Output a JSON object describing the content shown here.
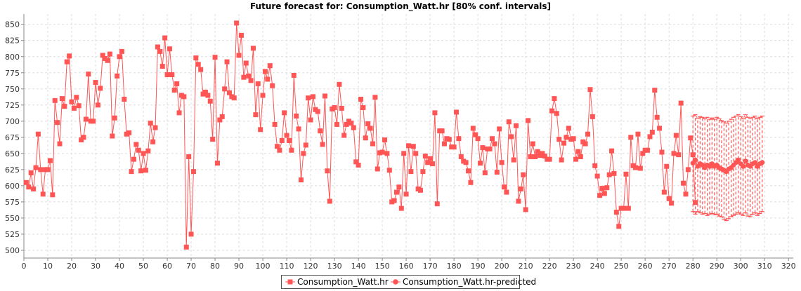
{
  "chart_data": {
    "type": "line",
    "title": "Future forecast for: Consumption_Watt.hr [80% conf. intervals]",
    "xlabel": "",
    "ylabel": "",
    "xlim": [
      0,
      322
    ],
    "ylim": [
      488,
      866
    ],
    "x_ticks": [
      0,
      10,
      20,
      30,
      40,
      50,
      60,
      70,
      80,
      90,
      100,
      110,
      120,
      130,
      140,
      150,
      160,
      170,
      180,
      190,
      200,
      210,
      220,
      230,
      240,
      250,
      260,
      270,
      280,
      290,
      300,
      310,
      320
    ],
    "y_ticks": [
      500,
      525,
      550,
      575,
      600,
      625,
      650,
      675,
      700,
      725,
      750,
      775,
      800,
      825,
      850
    ],
    "grid": true,
    "legend_position": "bottom",
    "series": [
      {
        "name": "Consumption_Watt.hr",
        "color": "#ff5555",
        "marker": "square",
        "x_start": 1,
        "values": [
          605,
          598,
          620,
          595,
          628,
          680,
          625,
          587,
          625,
          625,
          639,
          586,
          732,
          698,
          665,
          735,
          723,
          792,
          801,
          730,
          720,
          737,
          724,
          671,
          675,
          703,
          773,
          700,
          700,
          760,
          725,
          751,
          802,
          797,
          794,
          804,
          677,
          705,
          770,
          800,
          808,
          734,
          680,
          682,
          622,
          641,
          664,
          655,
          623,
          650,
          624,
          654,
          697,
          668,
          690,
          815,
          808,
          785,
          829,
          772,
          812,
          772,
          748,
          758,
          713,
          740,
          738,
          505,
          645,
          525,
          622,
          798,
          788,
          780,
          742,
          745,
          740,
          731,
          672,
          799,
          635,
          702,
          707,
          750,
          792,
          744,
          738,
          736,
          852,
          802,
          833,
          768,
          790,
          770,
          763,
          813,
          710,
          758,
          687,
          740,
          777,
          765,
          786,
          755,
          695,
          661,
          655,
          670,
          713,
          678,
          670,
          655,
          771,
          708,
          688,
          609,
          650,
          663,
          736,
          702,
          738,
          718,
          715,
          685,
          664,
          739,
          623,
          576,
          719,
          721,
          695,
          757,
          720,
          678,
          695,
          700,
          697,
          690,
          637,
          632,
          734,
          721,
          674,
          696,
          689,
          665,
          737,
          626,
          651,
          652,
          671,
          650,
          624,
          575,
          577,
          590,
          598,
          565,
          650,
          587,
          662,
          622,
          661,
          650,
          595,
          593,
          622,
          646,
          636,
          642,
          634,
          713,
          572,
          685,
          685,
          665,
          673,
          672,
          660,
          660,
          714,
          673,
          645,
          638,
          636,
          623,
          605,
          689,
          679,
          673,
          635,
          659,
          620,
          657,
          657,
          673,
          665,
          621,
          688,
          636,
          598,
          590,
          699,
          676,
          640,
          693,
          576,
          595,
          617,
          563,
          701,
          645,
          665,
          645,
          653,
          647,
          650,
          646,
          641,
          641,
          716,
          735,
          712,
          672,
          640,
          666,
          675,
          689,
          672,
          673,
          641,
          653,
          645,
          668,
          665,
          680,
          749,
          707,
          631,
          615,
          585,
          596,
          588,
          597,
          617,
          654,
          619,
          559,
          537,
          565,
          565,
          618,
          565,
          675,
          631,
          628,
          680,
          627,
          650,
          655,
          655,
          676,
          683,
          748,
          706,
          689,
          652,
          590,
          630,
          580,
          573,
          650,
          678,
          648,
          728,
          604,
          587,
          625,
          674,
          648,
          574
        ]
      },
      {
        "name": "Consumption_Watt.hr-predicted",
        "color": "#ff5555",
        "marker": "circle",
        "x_start": 280,
        "values": [
          635,
          640,
          630,
          634,
          632,
          628,
          632,
          630,
          634,
          630,
          632,
          628,
          626,
          624,
          622,
          626,
          628,
          632,
          636,
          640,
          634,
          630,
          638,
          632,
          630,
          634,
          636,
          630,
          634,
          636
        ],
        "lower": [
          560,
          556,
          560,
          558,
          556,
          557,
          554,
          556,
          557,
          555,
          556,
          553,
          552,
          548,
          546,
          549,
          552,
          554,
          556,
          558,
          556,
          554,
          558,
          553,
          552,
          556,
          558,
          554,
          557,
          560
        ],
        "upper": [
          708,
          710,
          704,
          707,
          706,
          704,
          706,
          703,
          705,
          703,
          706,
          704,
          701,
          699,
          697,
          700,
          703,
          706,
          708,
          710,
          707,
          704,
          710,
          706,
          704,
          706,
          708,
          704,
          706,
          708
        ]
      }
    ]
  },
  "legend": {
    "items": [
      {
        "label": "Consumption_Watt.hr"
      },
      {
        "label": "Consumption_Watt.hr-predicted"
      }
    ]
  }
}
